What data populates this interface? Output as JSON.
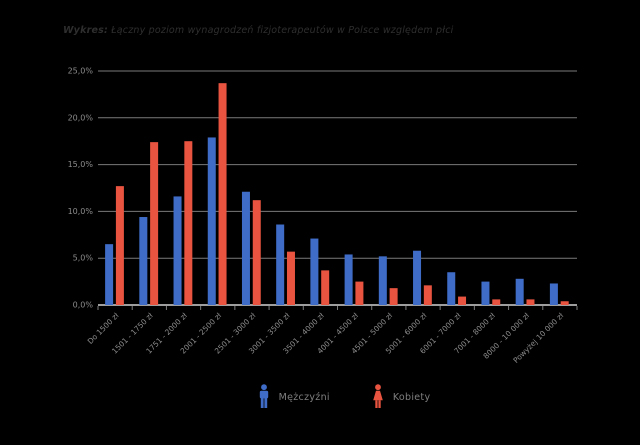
{
  "title": {
    "label_bold": "Wykres:",
    "label_rest": " Łączny poziom wynagrodzeń fizjoterapeutów w Polsce względem płci"
  },
  "legend": {
    "items": [
      {
        "label": "Mężczyźni",
        "color": "#3f6cc7",
        "icon": "male-icon"
      },
      {
        "label": "Kobiety",
        "color": "#e85440",
        "icon": "female-icon"
      }
    ]
  },
  "colors": {
    "background": "#000000",
    "male_bar": "#3f6cc7",
    "female_bar": "#e85440",
    "gridline": "#7a7a7a",
    "axis_line": "#9e9e9e",
    "tick_label": "#8c8c8c",
    "legend_text": "#7f7f7f",
    "title_text": "#2e2e2e"
  },
  "chart_data": {
    "type": "bar",
    "title": "Wykres: Łączny poziom wynagrodzeń fizjoterapeutów w Polsce względem płci",
    "categories": [
      "Do 1500 zł",
      "1501 - 1750 zł",
      "1751 - 2000 zł",
      "2001 - 2500 zł",
      "2501 - 3000 zł",
      "3001 - 3500 zł",
      "3501 - 4000 zł",
      "4001 - 4500 zł",
      "4501 - 5000 zł",
      "5001 - 6000 zł",
      "6001 - 7000 zł",
      "7001 - 8000 zł",
      "8000 - 10 000 zł",
      "Powyżej 10 000 zł"
    ],
    "series": [
      {
        "name": "Mężczyźni",
        "color": "#3f6cc7",
        "values": [
          6.5,
          9.4,
          11.6,
          17.9,
          12.1,
          8.6,
          7.1,
          5.4,
          5.2,
          5.8,
          3.5,
          2.5,
          2.8,
          2.3
        ]
      },
      {
        "name": "Kobiety",
        "color": "#e85440",
        "values": [
          12.7,
          17.4,
          17.5,
          23.7,
          11.2,
          5.7,
          3.7,
          2.5,
          1.8,
          2.1,
          0.9,
          0.6,
          0.6,
          0.4
        ]
      }
    ],
    "xlabel": "",
    "ylabel": "",
    "ylim": [
      0,
      25
    ],
    "y_ticks": [
      0,
      5,
      10,
      15,
      20,
      25
    ],
    "y_tick_labels": [
      "0,0%",
      "5,0%",
      "10,0%",
      "15,0%",
      "20,0%",
      "25,0%"
    ],
    "grid": true,
    "legend_position": "bottom"
  }
}
